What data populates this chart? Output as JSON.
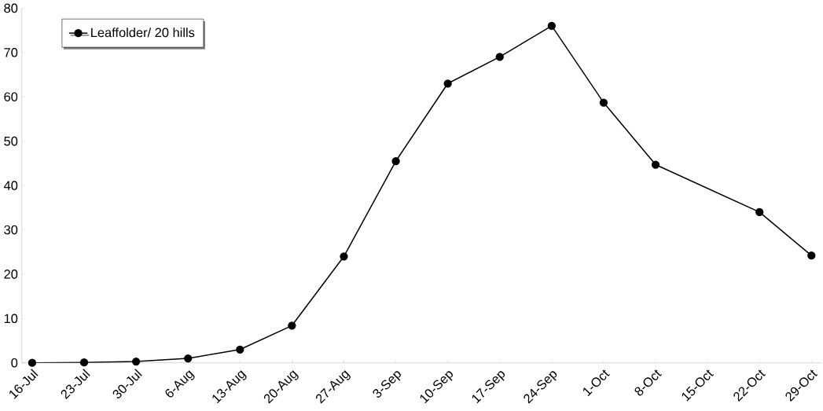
{
  "chart_data": {
    "type": "line",
    "categories": [
      "16-Jul",
      "23-Jul",
      "30-Jul",
      "6-Aug",
      "13-Aug",
      "20-Aug",
      "27-Aug",
      "3-Sep",
      "10-Sep",
      "17-Sep",
      "24-Sep",
      "1-Oct",
      "8-Oct",
      "15-Oct",
      "22-Oct",
      "29-Oct"
    ],
    "series": [
      {
        "name": "Leaffolder/ 20 hills",
        "color": "#000000",
        "values": [
          0,
          0.1,
          0.3,
          1,
          3,
          8.4,
          24,
          45.5,
          63,
          69,
          76,
          58.7,
          44.7,
          null,
          34,
          24.2
        ]
      }
    ],
    "ylim": [
      0,
      80
    ],
    "yticks": [
      0,
      10,
      20,
      30,
      40,
      50,
      60,
      70,
      80
    ],
    "legend": "top left",
    "marker": "circle",
    "line_style": "solid",
    "grid": false
  }
}
